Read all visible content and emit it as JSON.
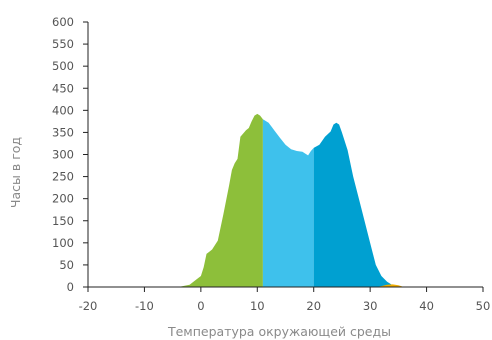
{
  "chart_data": {
    "type": "area",
    "xlabel": "Температура окружающей среды",
    "ylabel": "Часы в год",
    "xlim": [
      -20,
      50
    ],
    "ylim": [
      0,
      600
    ],
    "xticks": [
      "-20",
      "-10",
      "0",
      "10",
      "20",
      "30",
      "40",
      "50"
    ],
    "yticks": [
      "0",
      "50",
      "100",
      "150",
      "200",
      "250",
      "300",
      "350",
      "400",
      "450",
      "500",
      "550",
      "600"
    ],
    "grid": false,
    "series": [
      {
        "color": "#8dbf3a",
        "x": [
          -4,
          -2,
          -1,
          0,
          0.5,
          1,
          1.5,
          2,
          3,
          4,
          5,
          5.5,
          6,
          6.5,
          7,
          8,
          8.5,
          9,
          9.5,
          10,
          10.5,
          11
        ],
        "y": [
          0,
          5,
          15,
          25,
          45,
          75,
          80,
          85,
          105,
          165,
          230,
          265,
          280,
          290,
          340,
          355,
          360,
          375,
          388,
          392,
          388,
          380
        ]
      },
      {
        "color": "#3ec1ec",
        "x": [
          11,
          12,
          13,
          14,
          15,
          16,
          17,
          18,
          18.5,
          19,
          19.5,
          20
        ],
        "y": [
          380,
          372,
          355,
          338,
          322,
          312,
          308,
          306,
          302,
          298,
          308,
          315
        ]
      },
      {
        "color": "#00a0d1",
        "x": [
          20,
          21,
          22,
          23,
          23.5,
          24,
          24.5,
          25,
          26,
          27,
          28,
          29,
          30,
          31,
          32,
          33,
          34,
          35
        ],
        "y": [
          315,
          322,
          340,
          352,
          368,
          372,
          368,
          350,
          310,
          250,
          200,
          150,
          100,
          50,
          25,
          12,
          4,
          0
        ]
      },
      {
        "color": "#f0ad00",
        "x": [
          31,
          32,
          33,
          34,
          35,
          36
        ],
        "y": [
          0,
          2,
          5,
          6,
          4,
          0
        ]
      }
    ]
  }
}
